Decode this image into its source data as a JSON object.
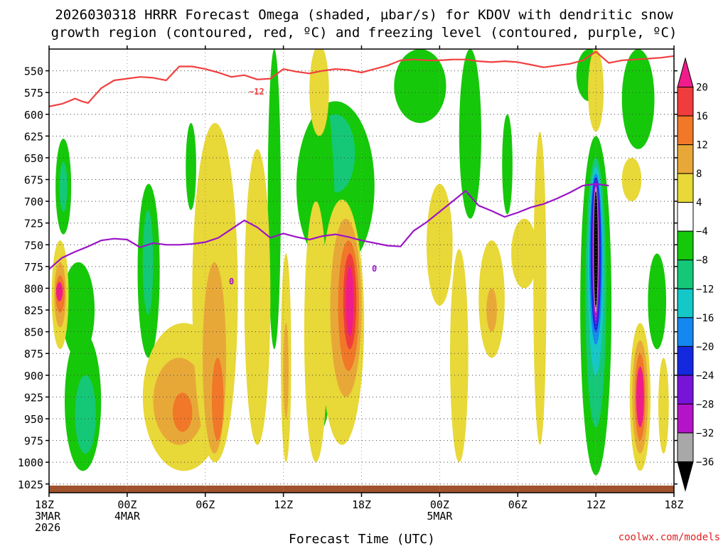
{
  "chart_data": {
    "type": "time-height cross section",
    "title": "2026030318 HRRR Forecast Omega (shaded, µbar/s) for KDOV with dendritic snow growth region (contoured, red, ºC) and freezing level (contoured, purple, ºC)",
    "title_lines": [
      "2026030318 HRRR Forecast Omega (shaded, µbar/s) for KDOV with dendritic snow",
      "growth region (contoured, red, ºC) and freezing level (contoured, purple, ºC)"
    ],
    "xlabel": "Forecast Time (UTC)",
    "credit": "coolwx.com/models",
    "x_range_hours": [
      0,
      48
    ],
    "y_range_mb": [
      1035,
      525
    ],
    "y_ticks_mb": [
      550,
      575,
      600,
      625,
      650,
      675,
      700,
      725,
      750,
      775,
      800,
      825,
      850,
      875,
      900,
      925,
      950,
      975,
      1000,
      1025
    ],
    "x_ticks": [
      {
        "hour": 0,
        "lines": [
          "18Z",
          "3MAR",
          "2026"
        ]
      },
      {
        "hour": 6,
        "lines": [
          "00Z",
          "4MAR"
        ]
      },
      {
        "hour": 12,
        "lines": [
          "06Z"
        ]
      },
      {
        "hour": 18,
        "lines": [
          "12Z"
        ]
      },
      {
        "hour": 24,
        "lines": [
          "18Z"
        ]
      },
      {
        "hour": 30,
        "lines": [
          "00Z",
          "5MAR"
        ]
      },
      {
        "hour": 36,
        "lines": [
          "06Z"
        ]
      },
      {
        "hour": 42,
        "lines": [
          "12Z"
        ]
      },
      {
        "hour": 48,
        "lines": [
          "18Z"
        ]
      }
    ],
    "colorbar": {
      "labels": [
        "20",
        "16",
        "12",
        "8",
        "4",
        "−4",
        "−8",
        "−12",
        "−16",
        "−20",
        "−24",
        "−28",
        "−32",
        "−36"
      ],
      "bins": [
        {
          "range": ">20",
          "color": "#f01c8c"
        },
        {
          "range": "16 to 20",
          "color": "#f03c3c"
        },
        {
          "range": "12 to 16",
          "color": "#f07828"
        },
        {
          "range": "8 to 12",
          "color": "#e8a838"
        },
        {
          "range": "4 to 8",
          "color": "#e8d838"
        },
        {
          "range": "-4 to 4",
          "color": "#ffffff"
        },
        {
          "range": "-8 to -4",
          "color": "#16c80a"
        },
        {
          "range": "-12 to -8",
          "color": "#14c878"
        },
        {
          "range": "-16 to -12",
          "color": "#14c8c8"
        },
        {
          "range": "-20 to -16",
          "color": "#1488f0"
        },
        {
          "range": "-24 to -20",
          "color": "#1428e0"
        },
        {
          "range": "-28 to -24",
          "color": "#7814d8"
        },
        {
          "range": "-32 to -28",
          "color": "#b414c8"
        },
        {
          "range": "-36 to -32",
          "color": "#a8a8a8"
        },
        {
          "range": "<-36",
          "color": "#000000"
        }
      ]
    },
    "dendritic_contour": {
      "label": "−12",
      "color": "#f04040",
      "points": [
        [
          0,
          591
        ],
        [
          1,
          588
        ],
        [
          2,
          582
        ],
        [
          2.5,
          585
        ],
        [
          3,
          587
        ],
        [
          4,
          570
        ],
        [
          5,
          561
        ],
        [
          6,
          559
        ],
        [
          7,
          557
        ],
        [
          8,
          558
        ],
        [
          9,
          561
        ],
        [
          10,
          545
        ],
        [
          11,
          545
        ],
        [
          12,
          548
        ],
        [
          13,
          552
        ],
        [
          14,
          557
        ],
        [
          15,
          555
        ],
        [
          16,
          560
        ],
        [
          17,
          559
        ],
        [
          18,
          548
        ],
        [
          19,
          551
        ],
        [
          20,
          553
        ],
        [
          21,
          550
        ],
        [
          22,
          548
        ],
        [
          23,
          549
        ],
        [
          24,
          552
        ],
        [
          25,
          548
        ],
        [
          26,
          544
        ],
        [
          27,
          538
        ],
        [
          28,
          537
        ],
        [
          29,
          538
        ],
        [
          30,
          538
        ],
        [
          31,
          537
        ],
        [
          32,
          537
        ],
        [
          33,
          539
        ],
        [
          34,
          540
        ],
        [
          35,
          539
        ],
        [
          36,
          540
        ],
        [
          37,
          543
        ],
        [
          38,
          546
        ],
        [
          39,
          544
        ],
        [
          40,
          542
        ],
        [
          41,
          538
        ],
        [
          42,
          528
        ],
        [
          43,
          541
        ],
        [
          44,
          538
        ],
        [
          45,
          537
        ],
        [
          46,
          536
        ],
        [
          47,
          535
        ],
        [
          48,
          533
        ]
      ]
    },
    "freezing_level": {
      "label": "0",
      "color": "#9c14c8",
      "points": [
        [
          0,
          778
        ],
        [
          1,
          765
        ],
        [
          2,
          758
        ],
        [
          3,
          752
        ],
        [
          4,
          745
        ],
        [
          5,
          743
        ],
        [
          6,
          744
        ],
        [
          7,
          753
        ],
        [
          8,
          748
        ],
        [
          9,
          750
        ],
        [
          10,
          750
        ],
        [
          11,
          749
        ],
        [
          12,
          747
        ],
        [
          13,
          742
        ],
        [
          14,
          732
        ],
        [
          15,
          722
        ],
        [
          16,
          730
        ],
        [
          17,
          742
        ],
        [
          18,
          737
        ],
        [
          19,
          741
        ],
        [
          20,
          744
        ],
        [
          21,
          740
        ],
        [
          22,
          738
        ],
        [
          23,
          741
        ],
        [
          24,
          745
        ],
        [
          25,
          748
        ],
        [
          26,
          751
        ],
        [
          27,
          752
        ],
        [
          28,
          734
        ],
        [
          29,
          724
        ],
        [
          30,
          712
        ],
        [
          31,
          700
        ],
        [
          32,
          688
        ],
        [
          33,
          705
        ],
        [
          34,
          711
        ],
        [
          35,
          718
        ],
        [
          36,
          713
        ],
        [
          37,
          707
        ],
        [
          38,
          703
        ],
        [
          39,
          697
        ],
        [
          40,
          690
        ],
        [
          41,
          682
        ],
        [
          42,
          680
        ],
        [
          43,
          682
        ]
      ]
    },
    "omega_regions": [
      {
        "value": -6,
        "t0": 0.5,
        "t1": 1.7,
        "p0": 628,
        "p1": 738
      },
      {
        "value": -10,
        "t0": 0.8,
        "t1": 1.4,
        "p0": 655,
        "p1": 712
      },
      {
        "value": -6,
        "t0": 1.2,
        "t1": 4.0,
        "p0": 850,
        "p1": 1010
      },
      {
        "value": -10,
        "t0": 2.0,
        "t1": 3.6,
        "p0": 900,
        "p1": 990
      },
      {
        "value": -6,
        "t0": 1.0,
        "t1": 3.5,
        "p0": 770,
        "p1": 880
      },
      {
        "value": -6,
        "t0": 6.8,
        "t1": 8.5,
        "p0": 680,
        "p1": 880
      },
      {
        "value": -10,
        "t0": 7.2,
        "t1": 8.0,
        "p0": 710,
        "p1": 830
      },
      {
        "value": -6,
        "t0": 10.5,
        "t1": 11.3,
        "p0": 610,
        "p1": 710
      },
      {
        "value": -6,
        "t0": 16.8,
        "t1": 17.8,
        "p0": 525,
        "p1": 870
      },
      {
        "value": -6,
        "t0": 19.0,
        "t1": 25.0,
        "p0": 585,
        "p1": 780
      },
      {
        "value": -10,
        "t0": 20.5,
        "t1": 23.5,
        "p0": 600,
        "p1": 690
      },
      {
        "value": -6,
        "t0": 20.0,
        "t1": 22.0,
        "p0": 570,
        "p1": 960
      },
      {
        "value": -6,
        "t0": 26.5,
        "t1": 30.5,
        "p0": 525,
        "p1": 610
      },
      {
        "value": -6,
        "t0": 31.5,
        "t1": 33.2,
        "p0": 525,
        "p1": 720
      },
      {
        "value": -6,
        "t0": 34.8,
        "t1": 35.6,
        "p0": 600,
        "p1": 715
      },
      {
        "value": -6,
        "t0": 40.5,
        "t1": 42.5,
        "p0": 525,
        "p1": 585
      },
      {
        "value": -6,
        "t0": 44.0,
        "t1": 46.5,
        "p0": 525,
        "p1": 640
      },
      {
        "value": -6,
        "t0": 46.0,
        "t1": 47.4,
        "p0": 760,
        "p1": 870
      },
      {
        "value": -6,
        "t0": 40.8,
        "t1": 43.2,
        "p0": 625,
        "p1": 1015
      },
      {
        "value": -10,
        "t0": 41.2,
        "t1": 42.8,
        "p0": 650,
        "p1": 960
      },
      {
        "value": -14,
        "t0": 41.4,
        "t1": 42.6,
        "p0": 660,
        "p1": 900
      },
      {
        "value": -18,
        "t0": 41.5,
        "t1": 42.5,
        "p0": 668,
        "p1": 865
      },
      {
        "value": -22,
        "t0": 41.6,
        "t1": 42.4,
        "p0": 672,
        "p1": 850
      },
      {
        "value": -26,
        "t0": 41.7,
        "t1": 42.3,
        "p0": 676,
        "p1": 842
      },
      {
        "value": -30,
        "t0": 41.75,
        "t1": 42.25,
        "p0": 680,
        "p1": 835
      },
      {
        "value": -34,
        "t0": 41.8,
        "t1": 42.2,
        "p0": 683,
        "p1": 828
      },
      {
        "value": -38,
        "t0": 41.85,
        "t1": 42.15,
        "p0": 688,
        "p1": 822
      },
      {
        "value": 6,
        "t0": 0.2,
        "t1": 1.5,
        "p0": 745,
        "p1": 870
      },
      {
        "value": 10,
        "t0": 0.4,
        "t1": 1.3,
        "p0": 770,
        "p1": 845
      },
      {
        "value": 14,
        "t0": 0.5,
        "t1": 1.2,
        "p0": 785,
        "p1": 828
      },
      {
        "value": 22,
        "t0": 0.55,
        "t1": 1.05,
        "p0": 793,
        "p1": 815
      },
      {
        "value": 6,
        "t0": 7.2,
        "t1": 13.5,
        "p0": 840,
        "p1": 1010
      },
      {
        "value": 10,
        "t0": 8.0,
        "t1": 12.0,
        "p0": 880,
        "p1": 980
      },
      {
        "value": 14,
        "t0": 9.5,
        "t1": 11.0,
        "p0": 920,
        "p1": 965
      },
      {
        "value": 6,
        "t0": 11.0,
        "t1": 14.5,
        "p0": 610,
        "p1": 1000
      },
      {
        "value": 10,
        "t0": 11.8,
        "t1": 13.6,
        "p0": 770,
        "p1": 990
      },
      {
        "value": 14,
        "t0": 12.5,
        "t1": 13.4,
        "p0": 880,
        "p1": 975
      },
      {
        "value": 6,
        "t0": 15.0,
        "t1": 17.0,
        "p0": 640,
        "p1": 980
      },
      {
        "value": 6,
        "t0": 17.8,
        "t1": 18.6,
        "p0": 760,
        "p1": 1000
      },
      {
        "value": 10,
        "t0": 18.0,
        "t1": 18.4,
        "p0": 840,
        "p1": 950
      },
      {
        "value": 6,
        "t0": 19.6,
        "t1": 21.4,
        "p0": 700,
        "p1": 1000
      },
      {
        "value": 6,
        "t0": 20.8,
        "t1": 24.2,
        "p0": 698,
        "p1": 980
      },
      {
        "value": 10,
        "t0": 21.6,
        "t1": 24.0,
        "p0": 720,
        "p1": 925
      },
      {
        "value": 14,
        "t0": 22.2,
        "t1": 23.8,
        "p0": 745,
        "p1": 895
      },
      {
        "value": 18,
        "t0": 22.6,
        "t1": 23.6,
        "p0": 760,
        "p1": 870
      },
      {
        "value": 22,
        "t0": 22.8,
        "t1": 23.4,
        "p0": 775,
        "p1": 855
      },
      {
        "value": 6,
        "t0": 20.0,
        "t1": 21.5,
        "p0": 520,
        "p1": 625
      },
      {
        "value": 6,
        "t0": 29.0,
        "t1": 31.0,
        "p0": 680,
        "p1": 820
      },
      {
        "value": 6,
        "t0": 30.8,
        "t1": 32.2,
        "p0": 755,
        "p1": 1000
      },
      {
        "value": 6,
        "t0": 33.0,
        "t1": 35.0,
        "p0": 745,
        "p1": 880
      },
      {
        "value": 10,
        "t0": 33.6,
        "t1": 34.4,
        "p0": 800,
        "p1": 850
      },
      {
        "value": 6,
        "t0": 35.5,
        "t1": 37.5,
        "p0": 720,
        "p1": 800
      },
      {
        "value": 6,
        "t0": 37.2,
        "t1": 38.2,
        "p0": 620,
        "p1": 980
      },
      {
        "value": 6,
        "t0": 41.4,
        "t1": 42.6,
        "p0": 525,
        "p1": 620
      },
      {
        "value": 6,
        "t0": 44.0,
        "t1": 45.5,
        "p0": 650,
        "p1": 700
      },
      {
        "value": 6,
        "t0": 44.6,
        "t1": 46.2,
        "p0": 840,
        "p1": 1010
      },
      {
        "value": 10,
        "t0": 44.8,
        "t1": 46.0,
        "p0": 860,
        "p1": 990
      },
      {
        "value": 14,
        "t0": 45.0,
        "t1": 45.8,
        "p0": 875,
        "p1": 975
      },
      {
        "value": 22,
        "t0": 45.1,
        "t1": 45.7,
        "p0": 890,
        "p1": 960
      },
      {
        "value": 6,
        "t0": 46.8,
        "t1": 47.6,
        "p0": 880,
        "p1": 990
      }
    ]
  }
}
